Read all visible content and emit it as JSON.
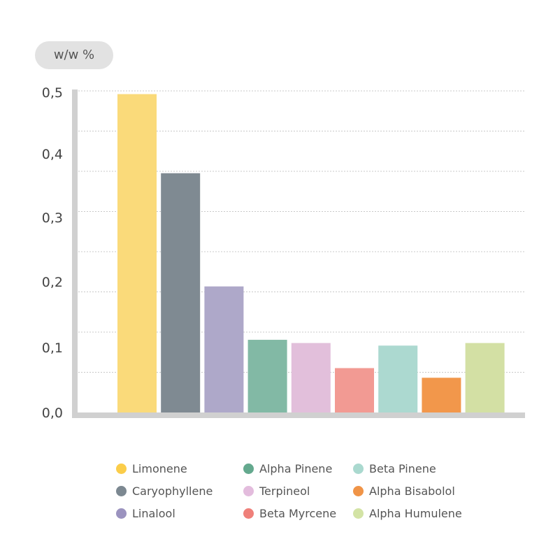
{
  "chart_data": {
    "type": "bar",
    "title": "",
    "xlabel": "",
    "ylabel": "w/w %",
    "ylim": [
      0,
      0.5
    ],
    "yticks": [
      "0,0",
      "0,1",
      "0,2",
      "0,3",
      "0,4",
      "0,5"
    ],
    "ytick_values": [
      0,
      0.1,
      0.2,
      0.3,
      0.4,
      0.5
    ],
    "grid": true,
    "legend_position": "bottom",
    "categories": [
      "Limonene",
      "Caryophyllene",
      "Linalool",
      "Alpha Pinene",
      "Terpineol",
      "Beta Myrcene",
      "Beta Pinene",
      "Alpha Bisabolol",
      "Alpha Humulene"
    ],
    "values": [
      0.495,
      0.372,
      0.196,
      0.113,
      0.108,
      0.069,
      0.104,
      0.054,
      0.108
    ],
    "bar_colors": [
      "#fada7a",
      "#7f8a92",
      "#aea8c9",
      "#82b9a5",
      "#e2bfdb",
      "#f29a93",
      "#acd9d0",
      "#f2974b",
      "#d3e0a4"
    ],
    "legend_colors": [
      "#fbcd4a",
      "#7c8891",
      "#9b93bf",
      "#64a98e",
      "#e3bcdd",
      "#ef807a",
      "#aad9cf",
      "#f09447",
      "#d3e3a5"
    ]
  }
}
